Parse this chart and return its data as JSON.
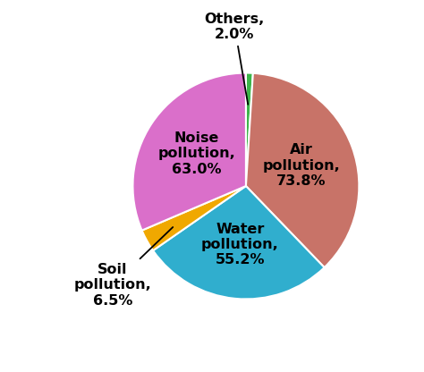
{
  "labels_ordered": [
    "Others",
    "Air pollution",
    "Water pollution",
    "Soil pollution",
    "Noise pollution"
  ],
  "values_ordered": [
    2.0,
    73.8,
    55.2,
    6.5,
    63.0
  ],
  "colors_ordered": [
    "#3DB54A",
    "#C87368",
    "#30AECE",
    "#F0A800",
    "#DA6FCA"
  ],
  "startangle": 90,
  "counterclock": false,
  "figsize": [
    4.74,
    4.16
  ],
  "dpi": 100,
  "bg_color": "#ffffff",
  "label_fontsize": 11.5,
  "label_fontweight": "bold",
  "edge_color": "#ffffff",
  "edge_linewidth": 1.5
}
